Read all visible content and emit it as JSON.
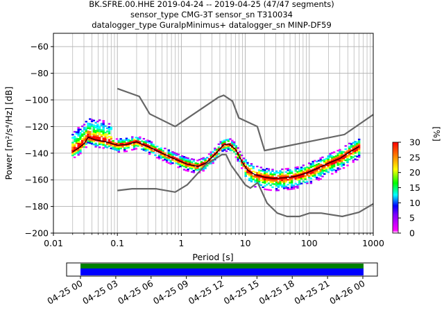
{
  "chart_data": {
    "type": "heatmap",
    "title_lines": [
      "BK.SFRE.00.HHE   2019-04-24 -- 2019-04-25  (47/47 segments)",
      "sensor_type CMG-3T sensor_sn T310034",
      "datalogger_type GuralpMinimus+ datalogger_sn MINP-DF59"
    ],
    "xlabel": "Period [s]",
    "ylabel": "Power [m²/s⁴/Hz] [dB]",
    "xscale": "log",
    "xlim": [
      0.01,
      1000
    ],
    "ylim": [
      -200,
      -50
    ],
    "xticks": [
      {
        "v": 0.01,
        "label": "0.01"
      },
      {
        "v": 0.1,
        "label": "0.1"
      },
      {
        "v": 1,
        "label": "1"
      },
      {
        "v": 10,
        "label": "10"
      },
      {
        "v": 100,
        "label": "100"
      },
      {
        "v": 1000,
        "label": "1000"
      }
    ],
    "yticks": [
      {
        "v": -60,
        "label": "−60"
      },
      {
        "v": -80,
        "label": "−80"
      },
      {
        "v": -100,
        "label": "−100"
      },
      {
        "v": -120,
        "label": "−120"
      },
      {
        "v": -140,
        "label": "−140"
      },
      {
        "v": -160,
        "label": "−160"
      },
      {
        "v": -180,
        "label": "−180"
      },
      {
        "v": -200,
        "label": "−200"
      }
    ],
    "grid": true,
    "colorbar": {
      "label": "[%]",
      "range": [
        0,
        30
      ],
      "ticks": [
        {
          "v": 0,
          "label": "0"
        },
        {
          "v": 5,
          "label": "5"
        },
        {
          "v": 10,
          "label": "10"
        },
        {
          "v": 15,
          "label": "15"
        },
        {
          "v": 20,
          "label": "20"
        },
        {
          "v": 25,
          "label": "25"
        },
        {
          "v": 30,
          "label": "30"
        }
      ],
      "colors": [
        "#ffffff",
        "#ff00ff",
        "#0000ff",
        "#00ffff",
        "#00ff00",
        "#ffff00",
        "#ff8000",
        "#ff0000"
      ]
    },
    "noise_models": {
      "high": {
        "periods": [
          0.1,
          0.22,
          0.32,
          0.8,
          3.8,
          4.6,
          6.3,
          7.9,
          15.4,
          20,
          354.8,
          1000
        ],
        "values": [
          -91.5,
          -97.4,
          -110.5,
          -120,
          -98,
          -96.5,
          -101,
          -113.5,
          -120,
          -138,
          -126,
          -111
        ]
      },
      "low": {
        "periods": [
          0.1,
          0.17,
          0.4,
          0.8,
          1.24,
          2.4,
          4.3,
          5,
          6,
          10,
          12,
          15.6,
          21.9,
          31.6,
          45,
          70,
          101,
          154,
          328,
          600,
          1000
        ],
        "values": [
          -168,
          -166.7,
          -166.7,
          -169.2,
          -163.7,
          -148.6,
          -141.1,
          -141.1,
          -149,
          -163.8,
          -166.2,
          -162.1,
          -177.5,
          -185,
          -187.5,
          -187.5,
          -185,
          -185,
          -187.5,
          -184.4,
          -178
        ]
      }
    },
    "series": [
      {
        "periods": [
          0.02,
          0.025,
          0.03,
          0.035,
          0.045,
          0.06,
          0.08,
          0.1,
          0.14,
          0.2,
          0.3,
          0.5,
          0.8,
          1.2,
          1.8,
          2.5,
          3.5,
          4.5,
          5.5,
          7,
          9,
          11,
          14,
          20,
          28,
          40,
          60,
          90,
          140,
          200,
          300,
          400,
          600
        ],
        "values": [
          -139,
          -136,
          -133,
          -128,
          -130,
          -131,
          -132.5,
          -134,
          -133.5,
          -131.5,
          -135,
          -140,
          -144.5,
          -148,
          -150,
          -147,
          -140,
          -134,
          -133,
          -137,
          -147,
          -153,
          -156,
          -158,
          -159,
          -158.5,
          -157.5,
          -155,
          -151,
          -147.5,
          -144,
          -140,
          -135
        ]
      }
    ],
    "time_axis": {
      "ticks": [
        "04-25 00",
        "04-25 03",
        "04-25 06",
        "04-25 09",
        "04-25 12",
        "04-25 15",
        "04-25 18",
        "04-25 21",
        "04-26 00"
      ],
      "bar_colors": [
        "#008000",
        "#0000ff"
      ]
    }
  }
}
